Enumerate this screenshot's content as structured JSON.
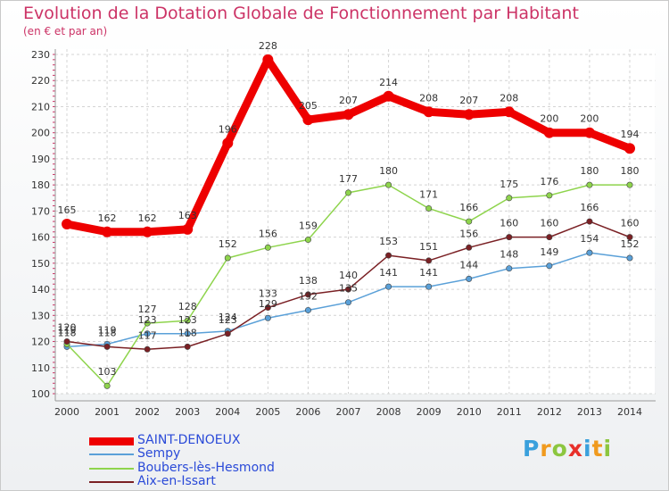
{
  "chart_data": {
    "type": "line",
    "title": "Evolution de la Dotation Globale de Fonctionnement par Habitant",
    "subtitle": "(en € et par an)",
    "xlabel": "",
    "ylabel": "",
    "ylim": [
      100,
      230
    ],
    "yticks": [
      100,
      110,
      120,
      130,
      140,
      150,
      160,
      170,
      180,
      190,
      200,
      210,
      220,
      230
    ],
    "grid": true,
    "categories": [
      "2000",
      "2001",
      "2002",
      "2003",
      "2004",
      "2005",
      "2006",
      "2007",
      "2008",
      "2009",
      "2010",
      "2011",
      "2012",
      "2013",
      "2014"
    ],
    "series": [
      {
        "name": "SAINT-DENOEUX",
        "color": "#ee0000",
        "values": [
          165,
          162,
          162,
          163,
          196,
          228,
          205,
          207,
          214,
          208,
          207,
          208,
          200,
          200,
          194
        ]
      },
      {
        "name": "Sempy",
        "color": "#5aa0d8",
        "values": [
          118,
          119,
          123,
          123,
          124,
          129,
          132,
          135,
          141,
          141,
          144,
          148,
          149,
          154,
          152
        ]
      },
      {
        "name": "Boubers-lès-Hesmond",
        "color": "#8ed44c",
        "values": [
          119,
          103,
          127,
          128,
          152,
          156,
          159,
          177,
          180,
          171,
          166,
          175,
          176,
          180,
          180
        ]
      },
      {
        "name": "Aix-en-Issart",
        "color": "#7a2024",
        "values": [
          120,
          118,
          117,
          118,
          123,
          133,
          138,
          140,
          153,
          151,
          156,
          160,
          160,
          166,
          160
        ]
      }
    ],
    "data_labels": {
      "SAINT-DENOEUX": [
        "165",
        "162",
        "162",
        "163",
        "196",
        "228",
        "205",
        "207",
        "214",
        "208",
        "207",
        "208",
        "200",
        "200",
        "194"
      ],
      "Sempy": [
        "118",
        "119",
        "123",
        "123",
        "124",
        "129",
        "132",
        "135",
        "141",
        "141",
        "144",
        "148",
        "149",
        "154",
        "152"
      ],
      "Boubers-lès-Hesmond": [
        "119",
        "103",
        "127",
        "128",
        "152",
        "156",
        "159",
        "177",
        "180",
        "171",
        "166",
        "175",
        "176",
        "180",
        "180"
      ],
      "Aix-en-Issart": [
        "120",
        "118",
        "117",
        "118",
        "123",
        "133",
        "138",
        "140",
        "153",
        "151",
        "156",
        "160",
        "160",
        "166",
        "160"
      ]
    },
    "legend_position": "bottom-left"
  },
  "logo": {
    "letters": [
      {
        "ch": "P",
        "color": "#3aa0dc"
      },
      {
        "ch": "r",
        "color": "#f09a1e"
      },
      {
        "ch": "o",
        "color": "#8cc63f"
      },
      {
        "ch": "x",
        "color": "#e8302a"
      },
      {
        "ch": "i",
        "color": "#3aa0dc"
      },
      {
        "ch": "t",
        "color": "#f09a1e"
      },
      {
        "ch": "i",
        "color": "#8cc63f"
      }
    ]
  }
}
